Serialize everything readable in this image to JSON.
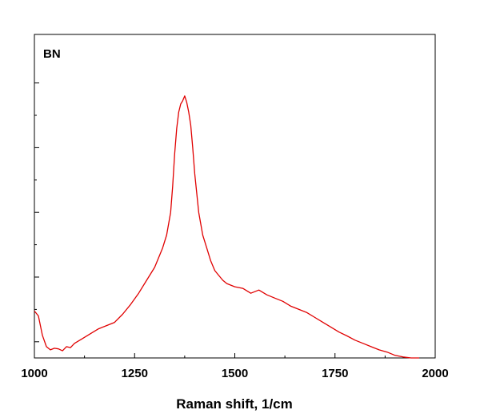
{
  "chart_data": {
    "type": "line",
    "title": "",
    "annotation": "BN",
    "xlabel": "Raman shift, 1/cm",
    "ylabel": "",
    "xlim": [
      1000,
      2000
    ],
    "ylim": [
      0,
      1
    ],
    "x_ticks": [
      1000,
      1250,
      1500,
      1750,
      2000
    ],
    "y_ticks_unlabeled": [
      0.05,
      0.25,
      0.45,
      0.65,
      0.85
    ],
    "grid": false,
    "line_color": "#e00000",
    "series": [
      {
        "x": [
          1000,
          1010,
          1020,
          1030,
          1040,
          1050,
          1060,
          1070,
          1080,
          1090,
          1100,
          1120,
          1140,
          1160,
          1180,
          1200,
          1220,
          1240,
          1260,
          1280,
          1300,
          1310,
          1320,
          1330,
          1340,
          1345,
          1350,
          1355,
          1360,
          1365,
          1370,
          1375,
          1380,
          1385,
          1390,
          1395,
          1400,
          1410,
          1420,
          1430,
          1440,
          1450,
          1460,
          1470,
          1480,
          1490,
          1500,
          1520,
          1540,
          1560,
          1580,
          1600,
          1620,
          1640,
          1660,
          1680,
          1700,
          1720,
          1740,
          1760,
          1780,
          1800,
          1820,
          1840,
          1860,
          1880,
          1900,
          1920,
          1940,
          1960
        ],
        "y": [
          0.145,
          0.13,
          0.07,
          0.035,
          0.025,
          0.03,
          0.028,
          0.022,
          0.035,
          0.032,
          0.045,
          0.06,
          0.075,
          0.09,
          0.1,
          0.11,
          0.135,
          0.165,
          0.2,
          0.24,
          0.28,
          0.31,
          0.34,
          0.38,
          0.45,
          0.53,
          0.63,
          0.71,
          0.76,
          0.785,
          0.795,
          0.81,
          0.79,
          0.76,
          0.72,
          0.65,
          0.57,
          0.45,
          0.38,
          0.34,
          0.3,
          0.27,
          0.255,
          0.24,
          0.23,
          0.225,
          0.22,
          0.215,
          0.2,
          0.21,
          0.195,
          0.185,
          0.175,
          0.16,
          0.15,
          0.14,
          0.125,
          0.11,
          0.095,
          0.08,
          0.068,
          0.055,
          0.045,
          0.035,
          0.025,
          0.018,
          0.008,
          0.003,
          0.0,
          0.0
        ]
      }
    ]
  }
}
